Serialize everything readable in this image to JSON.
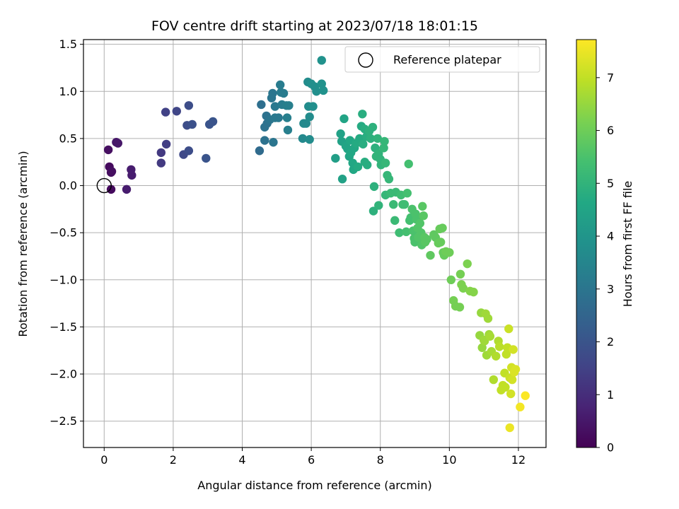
{
  "chart_data": {
    "type": "scatter",
    "title": "FOV centre drift starting at 2023/07/18 18:01:15",
    "xlabel": "Angular distance from reference (arcmin)",
    "ylabel": "Rotation from reference (arcmin)",
    "xlim": [
      -0.6,
      12.8
    ],
    "ylim": [
      -2.78,
      1.55
    ],
    "xticks": [
      0,
      2,
      4,
      6,
      8,
      10,
      12
    ],
    "yticks": [
      -2.5,
      -2.0,
      -1.5,
      -1.0,
      -0.5,
      0.0,
      0.5,
      1.0,
      1.5
    ],
    "xtick_labels": [
      "0",
      "2",
      "4",
      "6",
      "8",
      "10",
      "12"
    ],
    "ytick_labels": [
      "−2.5",
      "−2.0",
      "−1.5",
      "−1.0",
      "−0.5",
      "0.0",
      "0.5",
      "1.0",
      "1.5"
    ],
    "grid": true,
    "legend": {
      "placement": "top-right",
      "label": "Reference platepar"
    },
    "reference_point": {
      "x": 0,
      "y": 0
    },
    "colorbar": {
      "label": "Hours from first FF file",
      "range": [
        0,
        7.72
      ],
      "ticks": [
        0,
        1,
        2,
        3,
        4,
        5,
        6,
        7
      ],
      "tick_labels": [
        "0",
        "1",
        "2",
        "3",
        "4",
        "5",
        "6",
        "7"
      ],
      "colormap": "viridis"
    },
    "series": [
      {
        "points": [
          {
            "x": 0.12,
            "y": 0.38,
            "c": 0.3
          },
          {
            "x": 0.15,
            "y": 0.2,
            "c": 0.2
          },
          {
            "x": 0.2,
            "y": 0.14,
            "c": 0.25
          },
          {
            "x": 0.22,
            "y": 0.15,
            "c": 0.3
          },
          {
            "x": 0.2,
            "y": -0.04,
            "c": 0.2
          },
          {
            "x": 0.35,
            "y": 0.46,
            "c": 0.5
          },
          {
            "x": 0.4,
            "y": 0.45,
            "c": 0.5
          },
          {
            "x": 0.65,
            "y": -0.04,
            "c": 0.6
          },
          {
            "x": 0.78,
            "y": 0.17,
            "c": 0.6
          },
          {
            "x": 0.8,
            "y": 0.11,
            "c": 0.6
          },
          {
            "x": 1.65,
            "y": 0.35,
            "c": 1.3
          },
          {
            "x": 1.65,
            "y": 0.24,
            "c": 1.3
          },
          {
            "x": 1.78,
            "y": 0.78,
            "c": 1.5
          },
          {
            "x": 1.8,
            "y": 0.44,
            "c": 1.4
          },
          {
            "x": 2.1,
            "y": 0.79,
            "c": 1.6
          },
          {
            "x": 2.3,
            "y": 0.33,
            "c": 1.7
          },
          {
            "x": 2.4,
            "y": 0.64,
            "c": 1.8
          },
          {
            "x": 2.45,
            "y": 0.85,
            "c": 1.8
          },
          {
            "x": 2.45,
            "y": 0.37,
            "c": 1.8
          },
          {
            "x": 2.55,
            "y": 0.65,
            "c": 1.9
          },
          {
            "x": 2.95,
            "y": 0.29,
            "c": 2.0
          },
          {
            "x": 3.05,
            "y": 0.65,
            "c": 2.0
          },
          {
            "x": 3.15,
            "y": 0.68,
            "c": 2.0
          },
          {
            "x": 4.5,
            "y": 0.37,
            "c": 2.7
          },
          {
            "x": 4.55,
            "y": 0.86,
            "c": 2.8
          },
          {
            "x": 4.65,
            "y": 0.48,
            "c": 2.9
          },
          {
            "x": 4.65,
            "y": 0.62,
            "c": 2.9
          },
          {
            "x": 4.7,
            "y": 0.74,
            "c": 2.9
          },
          {
            "x": 4.72,
            "y": 0.66,
            "c": 2.9
          },
          {
            "x": 4.8,
            "y": 0.7,
            "c": 3.0
          },
          {
            "x": 4.85,
            "y": 0.93,
            "c": 3.0
          },
          {
            "x": 4.88,
            "y": 0.98,
            "c": 3.0
          },
          {
            "x": 4.9,
            "y": 0.46,
            "c": 3.0
          },
          {
            "x": 4.95,
            "y": 0.72,
            "c": 3.1
          },
          {
            "x": 4.95,
            "y": 0.84,
            "c": 3.1
          },
          {
            "x": 5.05,
            "y": 0.72,
            "c": 3.1
          },
          {
            "x": 5.1,
            "y": 1.07,
            "c": 3.2
          },
          {
            "x": 5.12,
            "y": 0.99,
            "c": 3.2
          },
          {
            "x": 5.15,
            "y": 0.86,
            "c": 3.2
          },
          {
            "x": 5.2,
            "y": 0.98,
            "c": 3.2
          },
          {
            "x": 5.28,
            "y": 0.85,
            "c": 3.3
          },
          {
            "x": 5.3,
            "y": 0.72,
            "c": 3.3
          },
          {
            "x": 5.32,
            "y": 0.59,
            "c": 3.3
          },
          {
            "x": 5.35,
            "y": 0.85,
            "c": 3.3
          },
          {
            "x": 5.75,
            "y": 0.5,
            "c": 3.6
          },
          {
            "x": 5.78,
            "y": 0.66,
            "c": 3.6
          },
          {
            "x": 5.85,
            "y": 0.66,
            "c": 3.6
          },
          {
            "x": 5.9,
            "y": 1.1,
            "c": 3.7
          },
          {
            "x": 5.92,
            "y": 0.84,
            "c": 3.7
          },
          {
            "x": 5.95,
            "y": 0.73,
            "c": 3.7
          },
          {
            "x": 5.95,
            "y": 0.49,
            "c": 3.7
          },
          {
            "x": 6.0,
            "y": 1.08,
            "c": 3.8
          },
          {
            "x": 6.05,
            "y": 0.84,
            "c": 3.8
          },
          {
            "x": 6.1,
            "y": 1.05,
            "c": 3.8
          },
          {
            "x": 6.15,
            "y": 1.0,
            "c": 3.8
          },
          {
            "x": 6.3,
            "y": 1.33,
            "c": 3.9
          },
          {
            "x": 6.3,
            "y": 1.08,
            "c": 3.9
          },
          {
            "x": 6.35,
            "y": 1.01,
            "c": 3.9
          },
          {
            "x": 6.7,
            "y": 0.29,
            "c": 4.3
          },
          {
            "x": 6.85,
            "y": 0.55,
            "c": 4.4
          },
          {
            "x": 6.88,
            "y": 0.47,
            "c": 4.4
          },
          {
            "x": 6.9,
            "y": 0.07,
            "c": 4.4
          },
          {
            "x": 6.95,
            "y": 0.71,
            "c": 4.5
          },
          {
            "x": 7.0,
            "y": 0.42,
            "c": 4.5
          },
          {
            "x": 7.05,
            "y": 0.39,
            "c": 4.5
          },
          {
            "x": 7.1,
            "y": 0.31,
            "c": 4.5
          },
          {
            "x": 7.12,
            "y": 0.48,
            "c": 4.6
          },
          {
            "x": 7.15,
            "y": 0.35,
            "c": 4.6
          },
          {
            "x": 7.2,
            "y": 0.24,
            "c": 4.6
          },
          {
            "x": 7.22,
            "y": 0.17,
            "c": 4.6
          },
          {
            "x": 7.25,
            "y": 0.4,
            "c": 4.6
          },
          {
            "x": 7.3,
            "y": 0.45,
            "c": 4.7
          },
          {
            "x": 7.35,
            "y": 0.2,
            "c": 4.7
          },
          {
            "x": 7.4,
            "y": 0.5,
            "c": 4.7
          },
          {
            "x": 7.45,
            "y": 0.63,
            "c": 4.7
          },
          {
            "x": 7.48,
            "y": 0.76,
            "c": 4.8
          },
          {
            "x": 7.5,
            "y": 0.44,
            "c": 4.8
          },
          {
            "x": 7.55,
            "y": 0.6,
            "c": 4.8
          },
          {
            "x": 7.55,
            "y": 0.25,
            "c": 4.8
          },
          {
            "x": 7.6,
            "y": 0.52,
            "c": 4.8
          },
          {
            "x": 7.62,
            "y": 0.22,
            "c": 4.8
          },
          {
            "x": 7.68,
            "y": 0.58,
            "c": 4.9
          },
          {
            "x": 7.72,
            "y": 0.5,
            "c": 4.9
          },
          {
            "x": 7.78,
            "y": 0.62,
            "c": 4.9
          },
          {
            "x": 7.8,
            "y": -0.27,
            "c": 4.9
          },
          {
            "x": 7.82,
            "y": -0.01,
            "c": 4.9
          },
          {
            "x": 7.85,
            "y": 0.4,
            "c": 4.9
          },
          {
            "x": 7.88,
            "y": 0.31,
            "c": 5.0
          },
          {
            "x": 7.92,
            "y": 0.5,
            "c": 5.0
          },
          {
            "x": 7.95,
            "y": -0.21,
            "c": 5.0
          },
          {
            "x": 7.95,
            "y": 0.34,
            "c": 5.0
          },
          {
            "x": 8.0,
            "y": 0.28,
            "c": 5.0
          },
          {
            "x": 8.02,
            "y": 0.22,
            "c": 5.0
          },
          {
            "x": 8.1,
            "y": 0.4,
            "c": 5.1
          },
          {
            "x": 8.12,
            "y": 0.47,
            "c": 5.1
          },
          {
            "x": 8.15,
            "y": -0.1,
            "c": 5.1
          },
          {
            "x": 8.15,
            "y": 0.24,
            "c": 5.1
          },
          {
            "x": 8.2,
            "y": 0.11,
            "c": 5.1
          },
          {
            "x": 8.25,
            "y": 0.07,
            "c": 5.1
          },
          {
            "x": 8.3,
            "y": -0.08,
            "c": 5.2
          },
          {
            "x": 8.38,
            "y": -0.2,
            "c": 5.2
          },
          {
            "x": 8.42,
            "y": -0.37,
            "c": 5.2
          },
          {
            "x": 8.45,
            "y": -0.07,
            "c": 5.2
          },
          {
            "x": 8.55,
            "y": -0.5,
            "c": 5.3
          },
          {
            "x": 8.6,
            "y": -0.1,
            "c": 5.3
          },
          {
            "x": 8.65,
            "y": -0.2,
            "c": 5.3
          },
          {
            "x": 8.7,
            "y": -0.2,
            "c": 5.3
          },
          {
            "x": 8.75,
            "y": -0.49,
            "c": 5.4
          },
          {
            "x": 8.78,
            "y": -0.08,
            "c": 5.4
          },
          {
            "x": 8.82,
            "y": 0.23,
            "c": 5.4
          },
          {
            "x": 8.85,
            "y": -0.37,
            "c": 5.4
          },
          {
            "x": 8.88,
            "y": -0.34,
            "c": 5.4
          },
          {
            "x": 8.92,
            "y": -0.25,
            "c": 5.5
          },
          {
            "x": 8.95,
            "y": -0.48,
            "c": 5.5
          },
          {
            "x": 8.98,
            "y": -0.56,
            "c": 5.5
          },
          {
            "x": 9.0,
            "y": -0.6,
            "c": 5.5
          },
          {
            "x": 9.02,
            "y": -0.3,
            "c": 5.5
          },
          {
            "x": 9.05,
            "y": -0.36,
            "c": 5.5
          },
          {
            "x": 9.08,
            "y": -0.45,
            "c": 5.6
          },
          {
            "x": 9.1,
            "y": -0.55,
            "c": 5.6
          },
          {
            "x": 9.15,
            "y": -0.4,
            "c": 5.6
          },
          {
            "x": 9.18,
            "y": -0.5,
            "c": 5.6
          },
          {
            "x": 9.2,
            "y": -0.63,
            "c": 5.6
          },
          {
            "x": 9.22,
            "y": -0.22,
            "c": 5.7
          },
          {
            "x": 9.25,
            "y": -0.32,
            "c": 5.7
          },
          {
            "x": 9.28,
            "y": -0.55,
            "c": 5.7
          },
          {
            "x": 9.3,
            "y": -0.6,
            "c": 5.7
          },
          {
            "x": 9.35,
            "y": -0.57,
            "c": 5.7
          },
          {
            "x": 9.45,
            "y": -0.74,
            "c": 5.8
          },
          {
            "x": 9.55,
            "y": -0.52,
            "c": 5.8
          },
          {
            "x": 9.6,
            "y": -0.55,
            "c": 5.8
          },
          {
            "x": 9.68,
            "y": -0.61,
            "c": 5.9
          },
          {
            "x": 9.72,
            "y": -0.46,
            "c": 5.9
          },
          {
            "x": 9.75,
            "y": -0.6,
            "c": 5.9
          },
          {
            "x": 9.8,
            "y": -0.45,
            "c": 5.9
          },
          {
            "x": 9.82,
            "y": -0.71,
            "c": 5.9
          },
          {
            "x": 9.85,
            "y": -0.74,
            "c": 5.9
          },
          {
            "x": 9.9,
            "y": -0.7,
            "c": 6.0
          },
          {
            "x": 10.0,
            "y": -0.71,
            "c": 6.0
          },
          {
            "x": 10.05,
            "y": -1.0,
            "c": 6.0
          },
          {
            "x": 10.12,
            "y": -1.22,
            "c": 6.1
          },
          {
            "x": 10.18,
            "y": -1.28,
            "c": 6.1
          },
          {
            "x": 10.3,
            "y": -1.29,
            "c": 6.1
          },
          {
            "x": 10.32,
            "y": -0.94,
            "c": 6.1
          },
          {
            "x": 10.35,
            "y": -1.05,
            "c": 6.2
          },
          {
            "x": 10.4,
            "y": -1.09,
            "c": 6.2
          },
          {
            "x": 10.52,
            "y": -0.83,
            "c": 6.2
          },
          {
            "x": 10.6,
            "y": -1.12,
            "c": 6.3
          },
          {
            "x": 10.7,
            "y": -1.13,
            "c": 6.3
          },
          {
            "x": 10.88,
            "y": -1.59,
            "c": 6.5
          },
          {
            "x": 10.92,
            "y": -1.35,
            "c": 6.5
          },
          {
            "x": 10.95,
            "y": -1.72,
            "c": 6.5
          },
          {
            "x": 11.0,
            "y": -1.64,
            "c": 6.6
          },
          {
            "x": 11.02,
            "y": -1.65,
            "c": 6.6
          },
          {
            "x": 11.05,
            "y": -1.36,
            "c": 6.6
          },
          {
            "x": 11.08,
            "y": -1.8,
            "c": 6.6
          },
          {
            "x": 11.12,
            "y": -1.41,
            "c": 6.6
          },
          {
            "x": 11.15,
            "y": -1.58,
            "c": 6.6
          },
          {
            "x": 11.18,
            "y": -1.6,
            "c": 6.7
          },
          {
            "x": 11.22,
            "y": -1.76,
            "c": 6.7
          },
          {
            "x": 11.28,
            "y": -2.06,
            "c": 6.8
          },
          {
            "x": 11.35,
            "y": -1.81,
            "c": 6.8
          },
          {
            "x": 11.42,
            "y": -1.65,
            "c": 6.8
          },
          {
            "x": 11.45,
            "y": -1.71,
            "c": 6.9
          },
          {
            "x": 11.5,
            "y": -2.17,
            "c": 7.0
          },
          {
            "x": 11.55,
            "y": -2.12,
            "c": 7.0
          },
          {
            "x": 11.6,
            "y": -1.99,
            "c": 7.0
          },
          {
            "x": 11.62,
            "y": -2.14,
            "c": 7.0
          },
          {
            "x": 11.65,
            "y": -1.79,
            "c": 7.0
          },
          {
            "x": 11.68,
            "y": -1.72,
            "c": 7.0
          },
          {
            "x": 11.72,
            "y": -1.52,
            "c": 7.1
          },
          {
            "x": 11.75,
            "y": -2.57,
            "c": 7.5
          },
          {
            "x": 11.75,
            "y": -2.04,
            "c": 7.1
          },
          {
            "x": 11.78,
            "y": -2.21,
            "c": 7.2
          },
          {
            "x": 11.8,
            "y": -1.93,
            "c": 7.2
          },
          {
            "x": 11.82,
            "y": -2.06,
            "c": 7.2
          },
          {
            "x": 11.85,
            "y": -1.74,
            "c": 7.2
          },
          {
            "x": 11.88,
            "y": -1.98,
            "c": 7.3
          },
          {
            "x": 11.92,
            "y": -1.95,
            "c": 7.3
          },
          {
            "x": 12.05,
            "y": -2.35,
            "c": 7.6
          },
          {
            "x": 12.2,
            "y": -2.23,
            "c": 7.7
          }
        ]
      }
    ]
  }
}
